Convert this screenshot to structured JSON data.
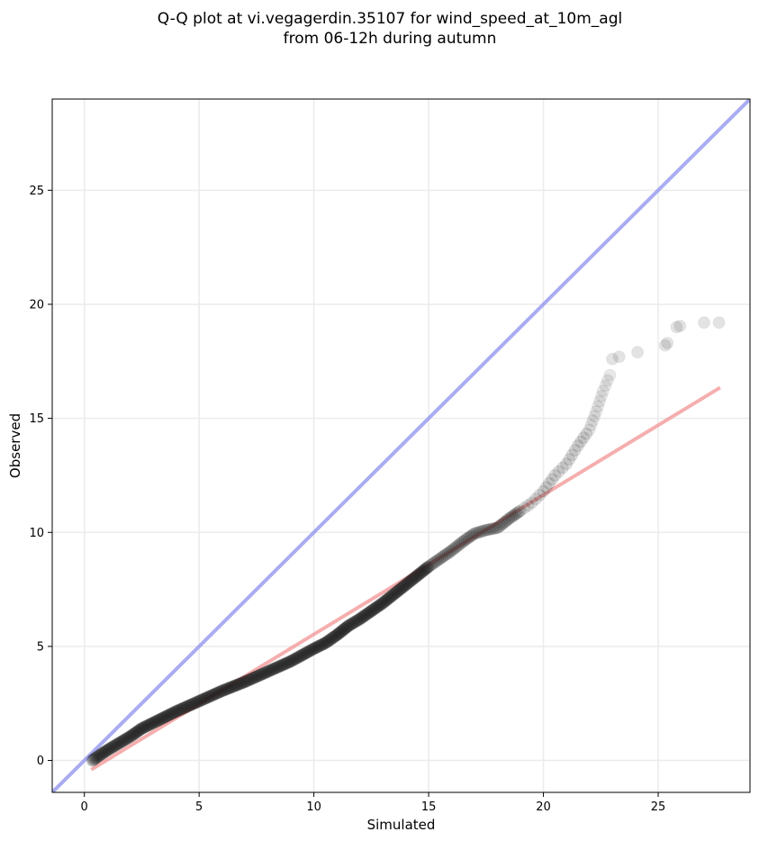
{
  "title": {
    "line1": "Q-Q plot at vi.vegagerdin.35107 for wind_speed_at_10m_agl",
    "line2": "from 06-12h during autumn"
  },
  "chart_data": {
    "type": "scatter",
    "title": "Q-Q plot at vi.vegagerdin.35107 for wind_speed_at_10m_agl from 06-12h during autumn",
    "xlabel": "Simulated",
    "ylabel": "Observed",
    "xlim": [
      -1.4,
      29.0
    ],
    "ylim": [
      -1.4,
      29.0
    ],
    "xticks": [
      0,
      5,
      10,
      15,
      20,
      25
    ],
    "yticks": [
      0,
      5,
      10,
      15,
      20,
      25
    ],
    "grid": true,
    "legend": "none",
    "reference_line": {
      "description": "y = x",
      "color": "#8c90ee"
    },
    "fit_line": {
      "points": [
        [
          0.3,
          -0.4
        ],
        [
          27.7,
          16.35
        ]
      ],
      "color": "#f29a9a"
    },
    "point_color": "#1a1a1a",
    "quantile_curve": [
      [
        0.35,
        0.0
      ],
      [
        0.7,
        0.25
      ],
      [
        1.0,
        0.45
      ],
      [
        1.5,
        0.75
      ],
      [
        2.0,
        1.05
      ],
      [
        2.5,
        1.4
      ],
      [
        3.0,
        1.65
      ],
      [
        3.5,
        1.9
      ],
      [
        4.0,
        2.15
      ],
      [
        5.0,
        2.6
      ],
      [
        6.0,
        3.05
      ],
      [
        7.0,
        3.45
      ],
      [
        8.0,
        3.9
      ],
      [
        9.0,
        4.35
      ],
      [
        10.0,
        4.9
      ],
      [
        10.5,
        5.15
      ],
      [
        11.0,
        5.5
      ],
      [
        11.5,
        5.9
      ],
      [
        12.0,
        6.2
      ],
      [
        13.0,
        6.9
      ],
      [
        14.0,
        7.7
      ],
      [
        15.0,
        8.5
      ],
      [
        16.0,
        9.2
      ],
      [
        16.5,
        9.6
      ],
      [
        17.0,
        9.95
      ],
      [
        17.5,
        10.1
      ],
      [
        18.0,
        10.2
      ],
      [
        18.5,
        10.6
      ],
      [
        19.0,
        10.95
      ],
      [
        19.5,
        11.3
      ],
      [
        20.0,
        11.8
      ],
      [
        20.5,
        12.5
      ],
      [
        21.0,
        13.0
      ],
      [
        21.5,
        13.8
      ],
      [
        22.0,
        14.5
      ],
      [
        22.3,
        15.3
      ],
      [
        22.6,
        16.2
      ],
      [
        22.9,
        16.9
      ]
    ],
    "outliers": [
      [
        23.0,
        17.6
      ],
      [
        23.3,
        17.7
      ],
      [
        24.1,
        17.9
      ],
      [
        25.3,
        18.2
      ],
      [
        25.4,
        18.3
      ],
      [
        25.8,
        19.0
      ],
      [
        25.95,
        19.05
      ],
      [
        27.0,
        19.2
      ],
      [
        27.65,
        19.2
      ]
    ]
  }
}
